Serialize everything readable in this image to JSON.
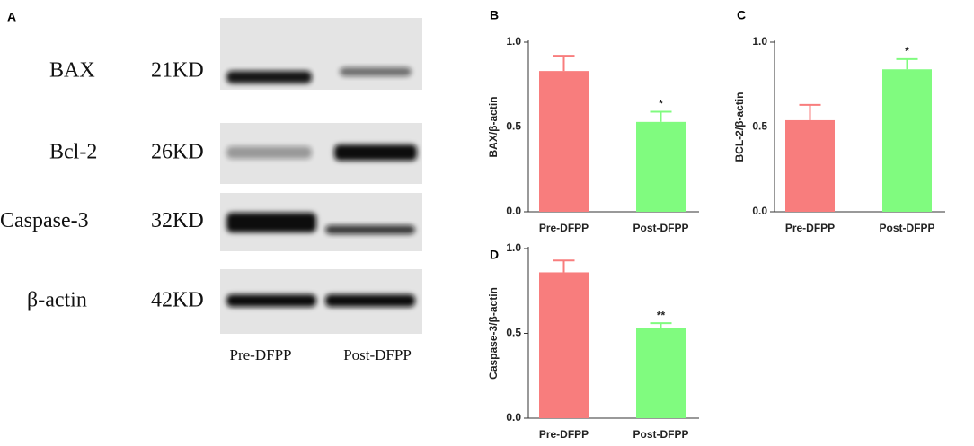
{
  "blot": {
    "panel": "A",
    "rows": [
      {
        "protein": "BAX",
        "size": "21KD"
      },
      {
        "protein": "Bcl-2",
        "size": "26KD"
      },
      {
        "protein": "Caspase-3",
        "size": "32KD"
      },
      {
        "protein": "β-actin",
        "size": "42KD"
      }
    ],
    "lanes": [
      "Pre-DFPP",
      "Post-DFPP"
    ]
  },
  "chart_data": [
    {
      "type": "bar",
      "panel": "B",
      "ylabel": "BAX/β-actin",
      "categories": [
        "Pre-DFPP",
        "Post-DFPP"
      ],
      "values": [
        0.83,
        0.53
      ],
      "errors": [
        0.09,
        0.06
      ],
      "colors": [
        "#f87d7d",
        "#80fb7f"
      ],
      "ylim": [
        0,
        1
      ],
      "yticks": [
        {
          "value": 0,
          "label": "0.0"
        },
        0.5,
        {
          "value": 1,
          "label": "1.0"
        }
      ],
      "annotation": "*"
    },
    {
      "type": "bar",
      "panel": "C",
      "ylabel": "BCL-2/β-actin",
      "categories": [
        "Pre-DFPP",
        "Post-DFPP"
      ],
      "values": [
        0.54,
        0.84
      ],
      "errors": [
        0.09,
        0.06
      ],
      "colors": [
        "#f87d7d",
        "#80fb7f"
      ],
      "ylim": [
        0,
        1
      ],
      "yticks": [
        {
          "value": 0,
          "label": "0.0"
        },
        0.5,
        {
          "value": 1,
          "label": "1.0"
        }
      ],
      "annotation": "*"
    },
    {
      "type": "bar",
      "panel": "D",
      "ylabel": "Caspase-3/β-actin",
      "categories": [
        "Pre-DFPP",
        "Post-DFPP"
      ],
      "values": [
        0.86,
        0.53
      ],
      "errors": [
        0.07,
        0.03
      ],
      "colors": [
        "#f87d7d",
        "#80fb7f"
      ],
      "ylim": [
        0,
        1
      ],
      "yticks": [
        {
          "value": 0,
          "label": "0.0"
        },
        0.5,
        {
          "value": 1,
          "label": "1.0"
        }
      ],
      "annotation": "**"
    }
  ]
}
